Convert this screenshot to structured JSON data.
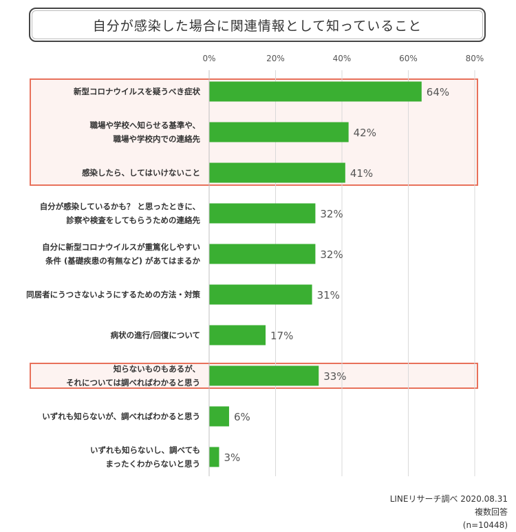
{
  "chart_data": {
    "type": "bar",
    "orientation": "horizontal",
    "title": "自分が感染した場合に関連情報として知っていること",
    "xlim": [
      0,
      80
    ],
    "ticks": [
      0,
      20,
      40,
      60,
      80
    ],
    "tick_labels": [
      "0%",
      "20%",
      "40%",
      "60%",
      "80%"
    ],
    "categories": [
      [
        "新型コロナウイルスを疑うべき症状"
      ],
      [
        "職場や学校へ知らせる基準や、",
        "職場や学校内での連絡先"
      ],
      [
        "感染したら、してはいけないこと"
      ],
      [
        "自分が感染しているかも？ と思ったときに、",
        "診察や検査をしてもらうための連絡先"
      ],
      [
        "自分に新型コロナウイルスが重篤化しやすい",
        "条件 (基礎疾患の有無など) があてはまるか"
      ],
      [
        "同居者にうつさないようにするための方法・対策"
      ],
      [
        "病状の進行/回復について"
      ],
      [
        "知らないものもあるが、",
        "それについては調べればわかると思う"
      ],
      [
        "いずれも知らないが、調べればわかると思う"
      ],
      [
        "いずれも知らないし、調べても",
        "まったくわからないと思う"
      ]
    ],
    "values": [
      64,
      42,
      41,
      32,
      32,
      31,
      17,
      33,
      6,
      3
    ],
    "value_labels": [
      "64%",
      "42%",
      "41%",
      "32%",
      "32%",
      "31%",
      "17%",
      "33%",
      "6%",
      "3%"
    ],
    "highlight_groups": [
      [
        0,
        1,
        2
      ],
      [
        7
      ]
    ],
    "grid": true,
    "legend": "none",
    "colors": {
      "bar": "#3aaf32",
      "highlight_border": "#e8705a",
      "highlight_fill": "#fdf3f1",
      "grid": "#d9d9d9"
    }
  },
  "footer": {
    "source": "LINEリサーチ調べ 2020.08.31",
    "note": "複数回答",
    "sample": "(n=10448)"
  }
}
